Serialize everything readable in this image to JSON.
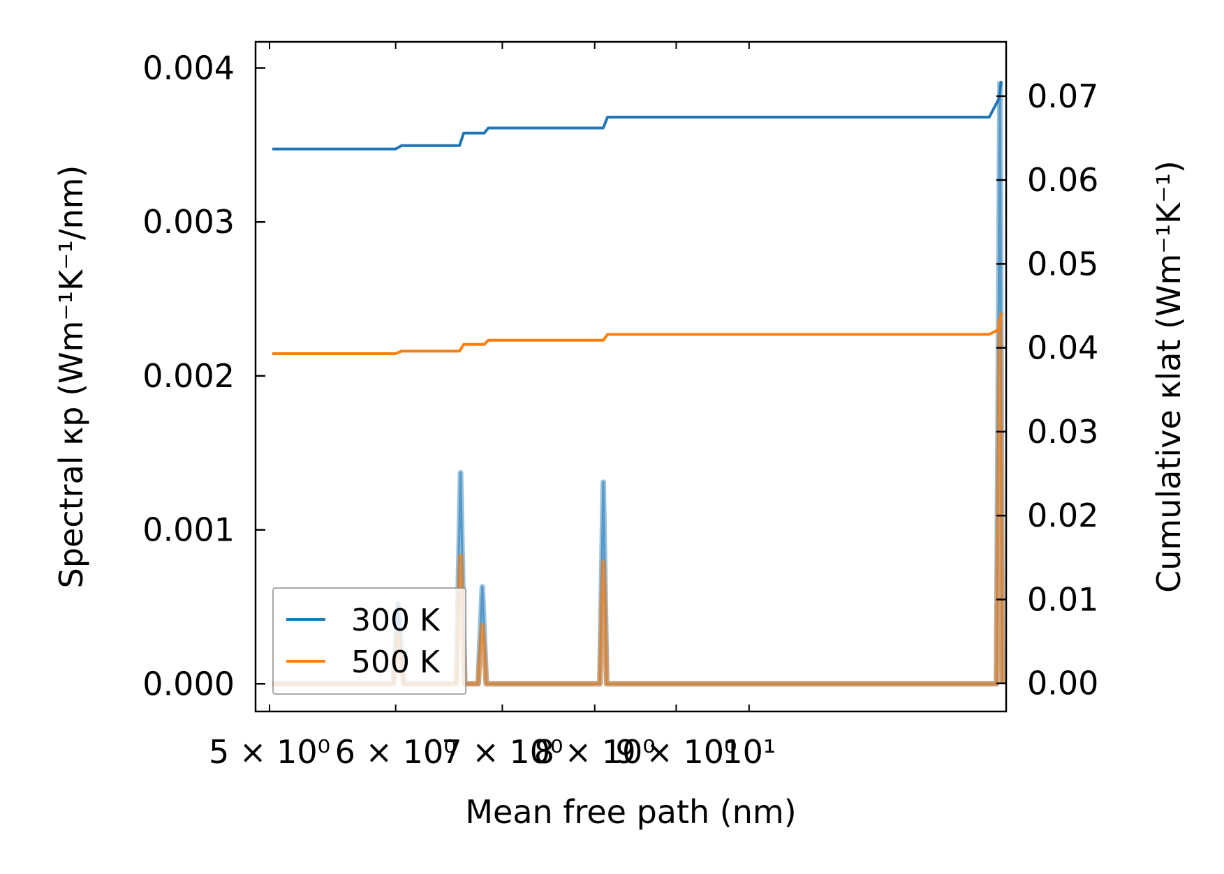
{
  "chart_data": {
    "type": "line",
    "xlabel": "Mean free path (nm)",
    "ylabel_left": "Spectral κp (Wm⁻¹K⁻¹/nm)",
    "ylabel_right": "Cumulative κlat (Wm⁻¹K⁻¹)",
    "x_scale": "log",
    "xlim": [
      4.9,
      14.5
    ],
    "ylim_left": [
      -0.00018,
      0.00417
    ],
    "ylim_right": [
      -0.00335,
      0.07647
    ],
    "x_tick_labels": [
      {
        "x": 5,
        "text": "5 × 10⁰"
      },
      {
        "x": 6,
        "text": "6 × 10⁰"
      },
      {
        "x": 7,
        "text": "7 × 10⁰"
      },
      {
        "x": 8,
        "text": "8 × 10⁰"
      },
      {
        "x": 9,
        "text": "9 × 10⁰"
      },
      {
        "x": 10,
        "text": "10¹"
      }
    ],
    "y_left_ticks": [
      {
        "value": 0.0,
        "text": "0.000"
      },
      {
        "value": 0.001,
        "text": "0.001"
      },
      {
        "value": 0.002,
        "text": "0.002"
      },
      {
        "value": 0.003,
        "text": "0.003"
      },
      {
        "value": 0.004,
        "text": "0.004"
      }
    ],
    "y_right_ticks": [
      {
        "value": 0.0,
        "text": "0.00"
      },
      {
        "value": 0.01,
        "text": "0.01"
      },
      {
        "value": 0.02,
        "text": "0.02"
      },
      {
        "value": 0.03,
        "text": "0.03"
      },
      {
        "value": 0.04,
        "text": "0.04"
      },
      {
        "value": 0.05,
        "text": "0.05"
      },
      {
        "value": 0.06,
        "text": "0.06"
      },
      {
        "value": 0.07,
        "text": "0.07"
      }
    ],
    "legend_position": "lower-left",
    "colors": {
      "300 K": "#1f77b4",
      "500 K": "#ff7f0e"
    },
    "series": [
      {
        "name": "300 K",
        "axis": "right",
        "kind": "cumulative",
        "x": [
          5.02,
          6.0,
          6.05,
          6.58,
          6.62,
          6.82,
          6.86,
          8.1,
          8.15,
          14.15,
          14.35,
          14.4
        ],
        "y": [
          0.0637,
          0.0637,
          0.0641,
          0.0641,
          0.0656,
          0.0656,
          0.0662,
          0.0662,
          0.0675,
          0.0675,
          0.0697,
          0.0718
        ]
      },
      {
        "name": "500 K",
        "axis": "right",
        "kind": "cumulative",
        "x": [
          5.02,
          6.0,
          6.05,
          6.58,
          6.62,
          6.82,
          6.86,
          8.1,
          8.15,
          14.15,
          14.35,
          14.4
        ],
        "y": [
          0.0393,
          0.0393,
          0.0396,
          0.0396,
          0.0404,
          0.0404,
          0.0409,
          0.0409,
          0.0416,
          0.0416,
          0.0422,
          0.0442
        ]
      },
      {
        "name": "300 K",
        "axis": "left",
        "kind": "spectral",
        "x": [
          5.02,
          5.98,
          6.02,
          6.07,
          6.55,
          6.59,
          6.63,
          6.76,
          6.8,
          6.84,
          8.06,
          8.1,
          8.14,
          14.3,
          14.37,
          14.42
        ],
        "y": [
          0.0,
          0.0,
          0.00052,
          0.0,
          0.0,
          0.00137,
          0.0,
          0.0,
          0.00063,
          0.0,
          0.0,
          0.00131,
          0.0,
          0.0,
          0.0039,
          0.0
        ]
      },
      {
        "name": "500 K",
        "axis": "left",
        "kind": "spectral",
        "x": [
          5.02,
          5.98,
          6.02,
          6.07,
          6.55,
          6.59,
          6.63,
          6.76,
          6.8,
          6.84,
          8.06,
          8.1,
          8.14,
          14.3,
          14.37,
          14.42
        ],
        "y": [
          0.0,
          0.0,
          0.00032,
          0.0,
          0.0,
          0.00083,
          0.0,
          0.0,
          0.00038,
          0.0,
          0.0,
          0.00079,
          0.0,
          0.0,
          0.00236,
          0.0
        ]
      }
    ]
  }
}
